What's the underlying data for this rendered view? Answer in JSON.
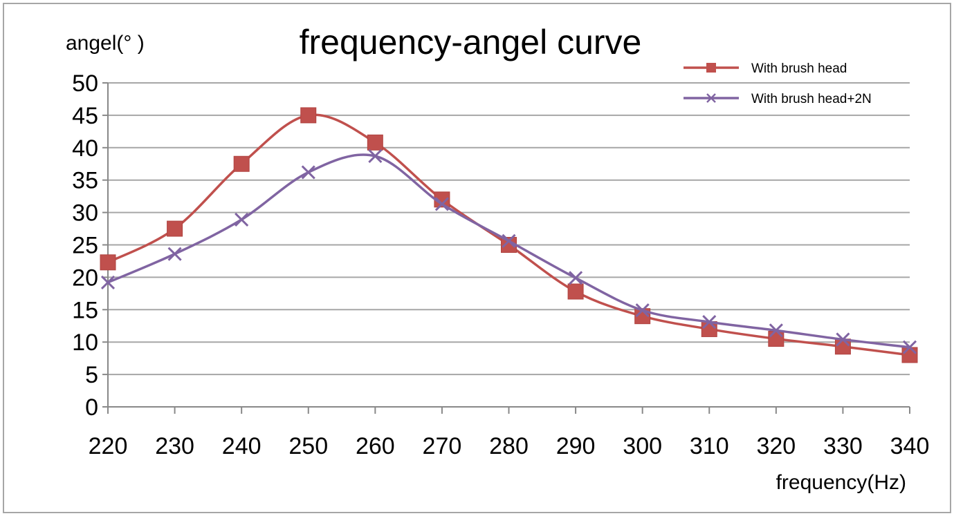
{
  "chart_data": {
    "type": "line",
    "title": "frequency-angel curve",
    "xlabel": "frequency(Hz)",
    "ylabel": "angel(°  )",
    "x": [
      220,
      230,
      240,
      250,
      260,
      270,
      280,
      290,
      300,
      310,
      320,
      330,
      340
    ],
    "ylim": [
      0,
      50
    ],
    "yticks": [
      0,
      5,
      10,
      15,
      20,
      25,
      30,
      35,
      40,
      45,
      50
    ],
    "grid": true,
    "legend_position": "top-right",
    "smooth": true,
    "series": [
      {
        "name": "With brush head",
        "marker": "square",
        "color": "#c0504d",
        "values": [
          22.3,
          27.5,
          37.5,
          45.0,
          40.8,
          32.0,
          25.0,
          17.8,
          14.0,
          12.0,
          10.5,
          9.3,
          8.0
        ]
      },
      {
        "name": "With brush head+2N",
        "marker": "x",
        "color": "#8064a2",
        "values": [
          19.2,
          23.6,
          28.9,
          36.2,
          38.7,
          31.3,
          25.6,
          19.9,
          14.9,
          13.1,
          11.8,
          10.4,
          9.2
        ]
      }
    ]
  }
}
